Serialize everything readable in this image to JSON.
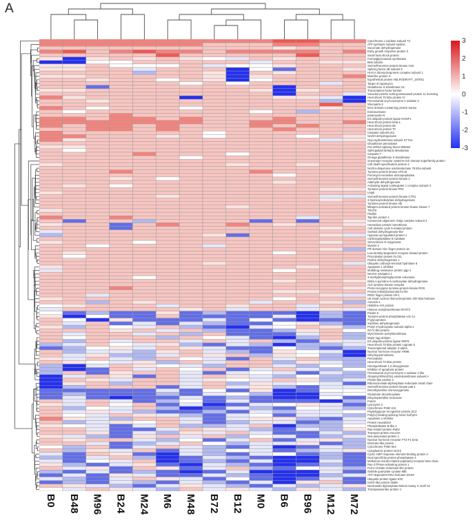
{
  "panel_label": "A",
  "colorbar": {
    "tick_labels": [
      "3",
      "2",
      "1",
      "0",
      "-1",
      "-2",
      "-3"
    ],
    "max_color": "#d7191c",
    "mid_color": "#ffffff",
    "min_color": "#2431f0"
  },
  "chart_data": {
    "type": "heatmap",
    "title": "",
    "value_range": [
      -3,
      3
    ],
    "legend_position": "right",
    "columns": [
      "B0",
      "B48",
      "M96",
      "B24",
      "M24",
      "M6",
      "M48",
      "B72",
      "B12",
      "M0",
      "B6",
      "B96",
      "M12",
      "M72"
    ],
    "rows": [
      "Cytochrome c oxidase subunit 7C",
      "ATP synthase subunit epsilon",
      "Succinate dehydrogenase",
      "Early growth response protein 3",
      "Small heat shock protein",
      "Formylglycinamide synthetase",
      "Beta tubulin",
      "Serine/threonine-protein kinase mos",
      "Splicing factor 3B subunit 5",
      "H/ACA ribonucleoprotein complex subunit 1",
      "Mak-like protein X",
      "hypothetical protein HELRODRAFT_187051",
      "Target of rapamycin",
      "Glutathione S-transferase S1",
      "Transcription factor hamlet",
      "Vacuolar protein sorting-associated protein 11 homolog",
      "Heat shock 70 kDa protein IV",
      "Peroxisomal acyl-coenzyme A oxidase 3",
      "Shematrin-2",
      "BAG domain-containing protein Samui",
      "Endonuclease",
      "paramyosin-5",
      "E3 ubiquitin-protein ligase KCMF1",
      "Heat shock protein beta-1",
      "Heat shock protein 68",
      "Heat shock protein 70",
      "Caspase subunit p12",
      "NADH dehydrogenase",
      "Glycosyltransferase subunit STT3A",
      "Glutathione peroxidase",
      "Pre-mRNA-splicing factor RBM22",
      "Sphingolipid delta(4)-desaturase",
      "Caspase-7",
      "Omega glutathione S-transferase",
      "Scavenger receptor cysteine-rich domain superfamily protein",
      "Cell death specification protein 2",
      "NADH-ubiquinone oxidoreductase 75 kDa subunit",
      "Tyrosine-protein kinase HTK16",
      "Puromycin-sensitive aminopeptidase",
      "Serine/threonine-protein kinase 2",
      "Aldehyde dehydrogenase",
      "Activating signal cointegrator 1 complex subunit 3",
      "Tyrosine-protein kinase PR2",
      "Legal",
      "Serine/threonine-protein kinase CTR1",
      "3-hydroxyisobutyrate dehydrogenase",
      "Tyrosine-protein kinase Abl",
      "Mitogen-activated protein kinase kinase kinase 7",
      "TRAF6",
      "Fibrillin",
      "Tap-like protein 1",
      "Conserved oligomeric Golgi complex subunit 4",
      "Homeobox protein homothorax",
      "Cell division cycle 5-related protein",
      "Sorbitol dehydrogenase-like",
      "Hypoxia up-regulated protein 1",
      "Carboxypeptidase B catalase",
      "Senecionine N-oxygenase",
      "Myosin-2",
      "PR domain zinc finger protein 16",
      "Low-density lipoprotein receptor-related protein",
      "Flocculation protein FLO11",
      "Proline dehydrogenase 1",
      "Ubiquitin carboxyl-terminal hydrolase 8",
      "Apoptosis 1 inhibitor",
      "Multidrug resistance protein pgp-1",
      "Neuron navigator 2",
      "3-methylphosphoglycerate reductase",
      "Delta-1-pyrroline-5-carboxylate dehydrogenase",
      "ALK tyrosine kinase receptor",
      "Proto-oncogene tyrosine-protein kinase ROS",
      "Protein lethal(2)essential for life",
      "RING finger protein nhl-1",
      "U5 small nuclear ribonucleoprotein 200 kDa helicase",
      "Annexin-1",
      "Histidine-rich protein",
      "Histone acetyltransferase MYST2",
      "Fibulin-5",
      "Tyrosine-protein phosphatase cdc-14",
      "P-glycoprotein",
      "Xanthine dehydrogenase",
      "Prolyl 4-hydroxylase subunit alpha-1",
      "2G71-like protein",
      "Myst histone acetyltransferase",
      "Major egg antigen",
      "E3 ubiquitin-protein ligase RNF8",
      "Heat shock 70 kDa protein cognate 5",
      "Transcriptional adapter 2-alpha",
      "Nuclear hormone receptor HR96",
      "Dihydropyrimidinase",
      "Peroxidasin",
      "Heat shock 70 kDa protein",
      "Homogentisate 1,2-dioxygenase",
      "Inhibitor of apoptosis protein",
      "Peroxisomal acyl-coenzyme A oxidase 1-like",
      "Glutamyl-tRNA(Gln) amidotransferase subunit A",
      "Prickle-like protein 2",
      "Ribonucleoside-diphosphate reductase small chain",
      "Serine/threonine-protein kinase pak-1",
      "Dimethylaniline monooxygenase",
      "Glutamate decarboxylase",
      "Dihydropteridine reductase",
      "Fascin",
      "Lysozyme 2",
      "Cytochrome P450 2J2",
      "Peptidoglycan-recognition protein SC2",
      "Poly(U)-binding-splicing factor half pint",
      "Apoptosis 2 inhibitor",
      "Protein neuralized",
      "Phospholipase B-like 2",
      "Ras-related protein Rab2",
      "Transport protein Sec23A",
      "Nck-associated protein 1",
      "Nuclear hormone receptor FTZ-F1 beta",
      "Diminuto-like protein",
      "Cytochrome P450 9e2",
      "Cytoplasmic protein NCK2",
      "Cyclic AMP response element-binding protein A",
      "Dual specificity protein phosphatase 4",
      "Molluscan insulin-related peptide(s) receptor beta chain",
      "Ras GTPase-activating protein 1",
      "Ferric-chelate reductase-like protein",
      "Soluble guanylate cyclase 88E",
      "ATP-dependent RNA helicase DHX8",
      "Ubiquitin-protein ligase E3C",
      "Kelch-like protein diablo",
      "Nucleoside diphosphate-linked moiety X motif 19",
      "Transposase-like protein 1"
    ],
    "palette": {
      "R": {
        "color": "#f25850",
        "value": 2.5
      },
      "r": {
        "color": "#f3837d",
        "value": 1.5
      },
      "p": {
        "color": "#f7c5c1",
        "value": 0.7
      },
      "q": {
        "color": "#fbe4e2",
        "value": 0.3
      },
      "w": {
        "color": "#ffffff",
        "value": 0
      },
      "l": {
        "color": "#e6e8fa",
        "value": -0.3
      },
      "b": {
        "color": "#b2b9f1",
        "value": -1
      },
      "B": {
        "color": "#626ee9",
        "value": -2
      },
      "D": {
        "color": "#2430f0",
        "value": -3
      }
    },
    "cells": [
      "rrrrrrrrrrRRrr",
      "rrrrrrrppprrpp",
      "ppppppppppqppp",
      "rRprRrrprrrrpr",
      "pppppRpppppRpp",
      "qDqpqpqwlpqppp",
      "DDwwppppplppqq",
      "qqpwwwplwwqppp",
      "qqpplpppDwBppq",
      "ppppbppqDpqppp",
      "qqpppppqDqpppr",
      "ppqppwpqDwpppp",
      "ppppppwpwppplp",
      "ppBpppppppDppp",
      "qqpppppppqDqpp",
      "ppppppppppDppl",
      "rqppppDpppqqlD",
      "ppqpppppppppbD",
      "ppppppppppppRp",
      "rpwpppwpppppqp",
      "pwpppppppwpbpp",
      "ppprpppppppppp",
      "rrprrprppprppp",
      "rrrrrrrpprrppr",
      "rprrprppprprpp",
      "pprrprpppprppp",
      "rppppppwpppppp",
      "rrpppqpwpppwpq",
      "rqpppppppppplq",
      "pppppppppppppp",
      "qqpppppppppppp",
      "pwpppppppppppp",
      "pppprpppwppppp",
      "ppppppwppppppp",
      "pppppppppppppp",
      "qpppppppqppqpp",
      "pppppppppppppp",
      "ppprppppprpppp",
      "ppppppppppwppp",
      "pppqpwpppppppp",
      "ppppppppppqppp",
      "pqpwpppppppppp",
      "ppppppppppppqq",
      "qppppppppppppp",
      "pppppqppppppll",
      "ppppppppppppqp",
      "pppppppppppppp",
      "ppppppppqppppp",
      "qppppppppppppp",
      "pppppppppppppp",
      "rpprppppppplpp",
      "pBppbppppBpBpq",
      "qppBprpprpqppq",
      "pppBppppppppqp",
      "lppppppppppppp",
      "bppppppqBpppql",
      "pppppppppppppp",
      "qpppwpppppppqp",
      "ppwpppplpppppp",
      "ppppppppppppqb",
      "pqppppppppwppp",
      "pwpppppppppppp",
      "pppppppppppppp",
      "pppppppqpppppl",
      "qppppppppppqpp",
      "lpppppppppwppp",
      "pppppppppppppp",
      "ppppwppppppppp",
      "ppppppppppqppq",
      "pppppppppppppp",
      "ppprpppppppppq",
      "ppppppppppqqpp",
      "pplpppppppppql",
      "qpppppppppwppp",
      "ppbpqpppplppqb",
      "wqppplppqpplpp",
      "lpppppqplpplql",
      "wBbBBqBbBBBDbB",
      "qDwBBpBBBBlDbB",
      "pwDqBBBlBwBDBB",
      "plpBlBlbBBwqbB",
      "qbpwlpbBDlwpqb",
      "pppqplpbBBbqpw",
      "plpplpbpBBBlpb",
      "pwpppbpwlBDbpb",
      "pbplpplplpbBql",
      "blpwlqbBlbDbbl",
      "BbwqlpqlBBwbBb",
      "pbllbqplbBqwlD",
      "plqbblpqpbqwbD",
      "qlplbpwlBplpbb",
      "pqwlqbplppbqlb",
      "bDlpqwlbpplbwb",
      "bDBplpwpBlplbw",
      "bpBqpplBlwlBlb",
      "DlpqBplpqlbwbb",
      "Dpqlpplqwlpqbl",
      "DqpbpplpbqlwlB",
      "DbpppBlplqbBll",
      "BBBBBlBwBqDBww",
      "BbBBBbBlwbDDlw",
      "BlBDBBlBbBDDwB",
      "plplBbwBlBBBDb",
      "qlpwpBlDBlwqlB",
      "pbwlpbDBlbBwlb",
      "plqlbBBbBlbllw",
      "pwlpqlbBlwBllb",
      "rqlbpplBlqqbBl",
      "pblqwplBbllBbl",
      "qwlBlpbblpDbbw",
      "pplBBlpqlbBlbq",
      "ppqBlbqlplBBlb",
      "qlbBqplpbwlBbl",
      "pqpplbwBlpBlqb",
      "pplBblpwbllqBb",
      "wbpBlplbBlDBlb",
      "pbqlpBlbwlBblq",
      "lBpqBDlbBlwBbB",
      "bBlpbDBlbBDDbB",
      "lBwlpDBbBlDDlB",
      "qbBlqBDlbBDBbB",
      "plqBpqBlpbBwlb",
      "bBlBbBDBlDDDlB",
      "BlBqlBBlbBDDbl",
      "lbBlpqlBwBDBlB",
      "BbBlbBlbBlDqpB",
      "pqlbBlqlbBlblq",
      "wlpqlbplqlbqlb"
    ],
    "column_dendrogram": [
      [
        [
          "B0",
          [
            "B48",
            "M96"
          ]
        ],
        [
          "B24",
          "M24"
        ]
      ],
      [
        [
          [
            "M6",
            "M48"
          ],
          [
            [
              "B72",
              "B12"
            ],
            "M0"
          ]
        ],
        [
          [
            "B6",
            "B96"
          ],
          [
            "M12",
            "M72"
          ]
        ]
      ]
    ],
    "row_dendrogram_note": "dense hierarchical clustering of 128 rows (left side), approximated"
  }
}
